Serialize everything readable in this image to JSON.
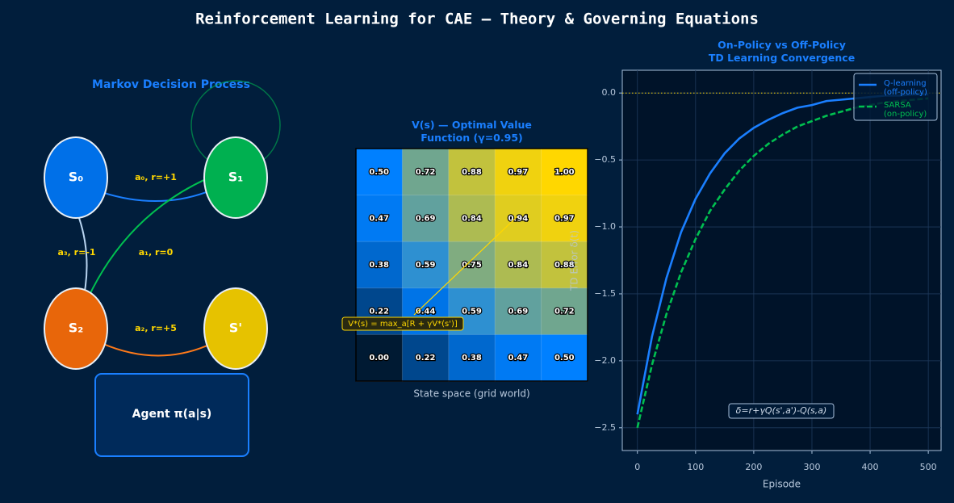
{
  "title": "Reinforcement Learning for CAE  —  Theory & Governing Equations",
  "diagram": {
    "title": "Markov Decision Process",
    "nodes": [
      {
        "label": "S₀",
        "color": "#0070e8"
      },
      {
        "label": "S₁",
        "color": "#00b050"
      },
      {
        "label": "S₂",
        "color": "#e8660a"
      },
      {
        "label": "S'",
        "color": "#e6c200"
      }
    ],
    "edges": [
      {
        "label": "a₀, r=+1"
      },
      {
        "label": "a₃, r=-1"
      },
      {
        "label": "a₁, r=0"
      },
      {
        "label": "a₂, r=+5"
      }
    ],
    "agent": "Agent  π(a|s)"
  },
  "chart_data": [
    {
      "type": "heatmap",
      "title": "V(s) — Optimal Value\nFunction (γ=0.95)",
      "xlabel": "State space (grid world)",
      "values": [
        [
          0.5,
          0.72,
          0.88,
          0.97,
          1.0
        ],
        [
          0.47,
          0.69,
          0.84,
          0.94,
          0.97
        ],
        [
          0.38,
          0.59,
          0.75,
          0.84,
          0.88
        ],
        [
          0.22,
          0.44,
          0.59,
          0.69,
          0.72
        ],
        [
          0.0,
          0.22,
          0.38,
          0.47,
          0.5
        ]
      ],
      "value_labels": [
        [
          "0.50",
          "0.72",
          "0.88",
          "0.97",
          "1.00"
        ],
        [
          "0.47",
          "0.69",
          "0.84",
          "0.94",
          "0.97"
        ],
        [
          "0.38",
          "0.59",
          "0.75",
          "0.84",
          "0.88"
        ],
        [
          "0.22",
          "0.44",
          "0.59",
          "0.69",
          "0.72"
        ],
        [
          "0.00",
          "0.22",
          "0.38",
          "0.47",
          "0.50"
        ]
      ],
      "colormap": [
        "#001a33",
        "#0080ff",
        "#ffd700"
      ],
      "annotation": "V*(s) = max_a[R + γV*(s')]"
    },
    {
      "type": "line",
      "title": "On-Policy vs Off-Policy\nTD Learning Convergence",
      "xlabel": "Episode",
      "ylabel": "TD Error δ(t)",
      "x": [
        0,
        25,
        50,
        75,
        100,
        125,
        150,
        175,
        200,
        225,
        250,
        275,
        300,
        325,
        350,
        375,
        400,
        425,
        450,
        475,
        500
      ],
      "series": [
        {
          "name": "Q-learning\n(off-policy)",
          "color": "#1a7fff",
          "dash": false,
          "values": [
            -2.4,
            -1.82,
            -1.38,
            -1.04,
            -0.79,
            -0.6,
            -0.45,
            -0.34,
            -0.26,
            -0.2,
            -0.15,
            -0.11,
            -0.09,
            -0.06,
            -0.05,
            -0.04,
            -0.03,
            -0.02,
            -0.02,
            -0.01,
            -0.01
          ]
        },
        {
          "name": "SARSA\n(on-policy)",
          "color": "#00c050",
          "dash": true,
          "values": [
            -2.5,
            -2.03,
            -1.65,
            -1.34,
            -1.09,
            -0.88,
            -0.72,
            -0.58,
            -0.47,
            -0.38,
            -0.31,
            -0.25,
            -0.21,
            -0.17,
            -0.14,
            -0.11,
            -0.09,
            -0.07,
            -0.06,
            -0.05,
            -0.04
          ]
        }
      ],
      "xlim": [
        -26,
        522
      ],
      "ylim": [
        -2.67,
        0.17
      ],
      "xticks": [
        0,
        100,
        200,
        300,
        400,
        500
      ],
      "yticks": [
        {
          "value": 0,
          "label": "0.0"
        },
        {
          "value": -0.5,
          "label": "−0.5"
        },
        {
          "value": -1,
          "label": "−1.0"
        },
        {
          "value": -1.5,
          "label": "−1.5"
        },
        {
          "value": -2,
          "label": "−2.0"
        },
        {
          "value": -2.5,
          "label": "−2.5"
        }
      ],
      "hline": 0,
      "grid": true,
      "legend": "upper right",
      "annotation": "δ=r+γQ(s',a')-Q(s,a)"
    }
  ]
}
